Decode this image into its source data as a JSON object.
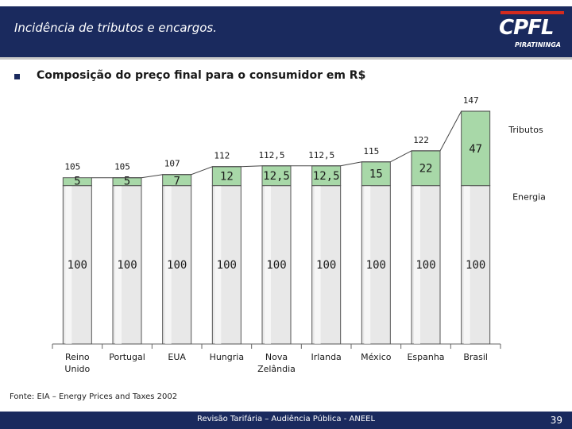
{
  "header": {
    "title": "Incidência de tributos e encargos.",
    "logo_text": "CPFL",
    "logo_sub": "PIRATININGA"
  },
  "subtitle": "Composição do preço final para o consumidor em R$",
  "chart_data": {
    "type": "bar",
    "stacked": true,
    "categories": [
      "Reino Unido",
      "Portugal",
      "EUA",
      "Hungria",
      "Nova Zelândia",
      "Irlanda",
      "México",
      "Espanha",
      "Brasil"
    ],
    "category_lines": [
      [
        "Reino",
        "Unido"
      ],
      [
        "Portugal"
      ],
      [
        "EUA"
      ],
      [
        "Hungria"
      ],
      [
        "Nova",
        "Zelândia"
      ],
      [
        "Irlanda"
      ],
      [
        "México"
      ],
      [
        "Espanha"
      ],
      [
        "Brasil"
      ]
    ],
    "series": [
      {
        "name": "Energia",
        "values": [
          100,
          100,
          100,
          100,
          100,
          100,
          100,
          100,
          100
        ],
        "labels": [
          "100",
          "100",
          "100",
          "100",
          "100",
          "100",
          "100",
          "100",
          "100"
        ],
        "color": "#e8e8e8"
      },
      {
        "name": "Tributos",
        "values": [
          5,
          5,
          7,
          12,
          12.5,
          12.5,
          15,
          22,
          47
        ],
        "labels": [
          "5",
          "5",
          "7",
          "12",
          "12,5",
          "12,5",
          "15",
          "22",
          "47"
        ],
        "color": "#a8d8a8"
      }
    ],
    "totals": [
      105,
      105,
      107,
      112,
      112.5,
      112.5,
      115,
      122,
      147
    ],
    "total_labels": [
      "105",
      "105",
      "107",
      "112",
      "112,5",
      "112,5",
      "115",
      "122",
      "147"
    ],
    "line": "totals",
    "ylim": [
      0,
      150
    ],
    "grid": false,
    "legend": [
      "Tributos",
      "Energia"
    ],
    "legend_placement": "right",
    "title": "",
    "xlabel": "",
    "ylabel": ""
  },
  "source": "Fonte: EIA – Energy Prices and Taxes 2002",
  "footer": {
    "text": "Revisão Tarifária – Audiência Pública - ANEEL",
    "page": "39"
  }
}
